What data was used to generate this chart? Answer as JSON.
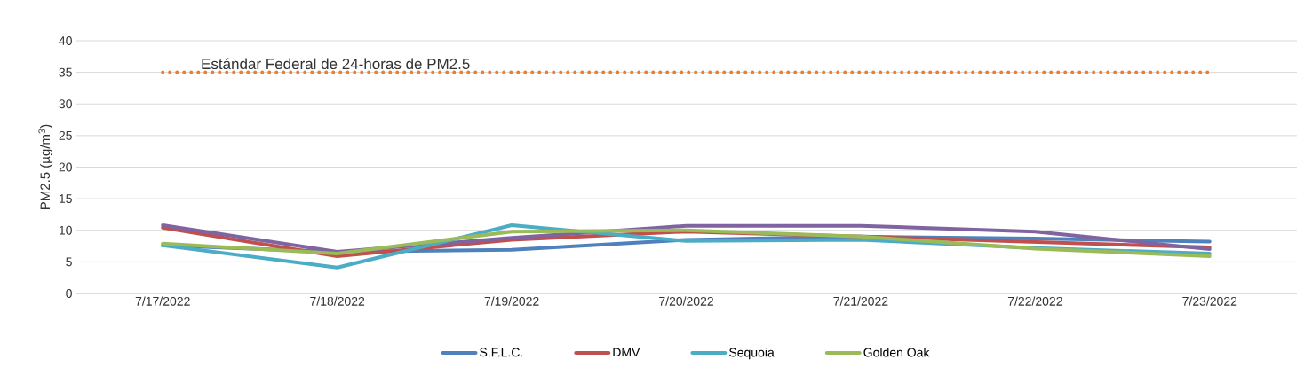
{
  "chart_data": {
    "type": "line",
    "ylabel": "PM2.5 (µg/m$^{3}$)",
    "categories": [
      "7/17/2022",
      "7/18/2022",
      "7/19/2022",
      "7/20/2022",
      "7/21/2022",
      "7/22/2022",
      "7/23/2022"
    ],
    "series": [
      {
        "name": "S.F.L.C.",
        "color": "#4f81bd",
        "values": [
          7.6,
          6.6,
          6.9,
          8.5,
          9.0,
          8.7,
          8.2
        ]
      },
      {
        "name": "DMV",
        "color": "#c0504d",
        "values": [
          10.4,
          5.9,
          8.5,
          9.8,
          9.0,
          null,
          7.3
        ]
      },
      {
        "color": "#8064a2",
        "values": [
          10.8,
          6.6,
          8.8,
          10.7,
          10.7,
          9.8,
          7.0
        ]
      },
      {
        "name": "Sequoia",
        "color": "#4bacc6",
        "values": [
          7.6,
          4.1,
          10.8,
          8.3,
          8.5,
          7.2,
          6.3
        ]
      },
      {
        "name": "Golden Oak",
        "color": "#9bbb59",
        "values": [
          7.9,
          6.3,
          9.8,
          10.0,
          9.0,
          7.1,
          5.9
        ]
      }
    ],
    "ref_lines": [
      {
        "axis": "y",
        "value": 35,
        "label": "Estándar Federal de 24-horas de PM2.5",
        "color": "#ed7d31",
        "line_style": "dotted"
      }
    ],
    "ylim": [
      0,
      40
    ],
    "yticks": [
      0,
      5,
      10,
      15,
      20,
      25,
      30,
      35,
      40
    ],
    "grid": "y",
    "legend": "bottom",
    "line_style": "solid",
    "marker": "none"
  }
}
